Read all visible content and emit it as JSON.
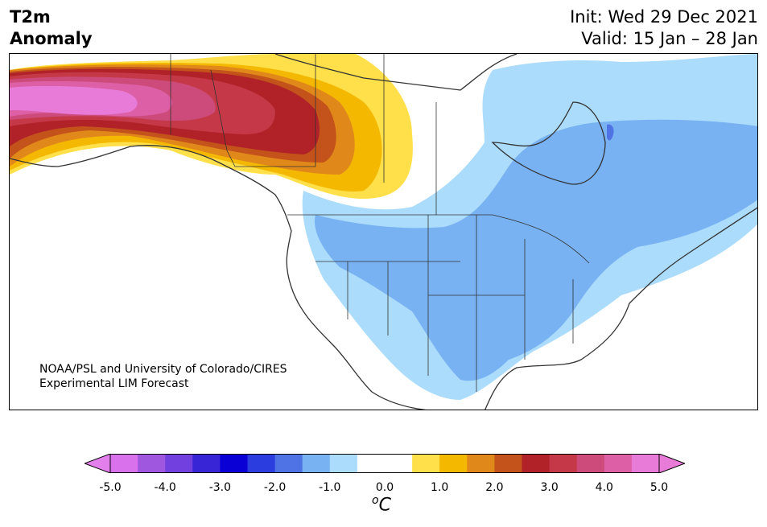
{
  "header": {
    "variable": "T2m",
    "field": "Anomaly",
    "init": "Init: Wed 29 Dec 2021",
    "valid": "Valid: 15 Jan – 28 Jan"
  },
  "credit": {
    "line1": "NOAA/PSL and University of Colorado/CIRES",
    "line2": "Experimental LIM Forecast"
  },
  "colorbar": {
    "unit_prefix": "o",
    "unit_letter": "C",
    "ticks": [
      "-5.0",
      "-4.0",
      "-3.0",
      "-2.0",
      "-1.0",
      "0.0",
      "1.0",
      "2.0",
      "3.0",
      "4.0",
      "5.0"
    ],
    "range": [
      -5.0,
      5.0
    ],
    "step": 0.5,
    "colors": [
      "#d971ed",
      "#a057e0",
      "#7140de",
      "#3825d6",
      "#0a00d6",
      "#2b3ddf",
      "#4f73e4",
      "#78b2f3",
      "#acdcfb",
      "#ffffff",
      "#ffffff",
      "#ffe04a",
      "#f5b800",
      "#e0881a",
      "#c4521b",
      "#b02228",
      "#c53847",
      "#cc4b7a",
      "#dd5fa5",
      "#e87ad8"
    ],
    "under_color": "#e27fea",
    "over_color": "#e87ad8"
  },
  "map": {
    "region": "North America",
    "projection": "Plate Carree",
    "features": [
      "coastlines",
      "country borders",
      "US state borders",
      "Canadian province borders"
    ],
    "anomaly_regions": [
      {
        "area": "Alaska",
        "anomaly_c": "4.0 to 5.0"
      },
      {
        "area": "Yukon and northern British Columbia",
        "anomaly_c": "3.0 to 4.0"
      },
      {
        "area": "Northwest Territories / northern Alberta",
        "anomaly_c": "1.0 to 3.0"
      },
      {
        "area": "Northern Plains / central US",
        "anomaly_c": "-1.5 to -1.0"
      },
      {
        "area": "Quebec and eastern Canada",
        "anomaly_c": "-1.5 to -1.0"
      }
    ]
  }
}
